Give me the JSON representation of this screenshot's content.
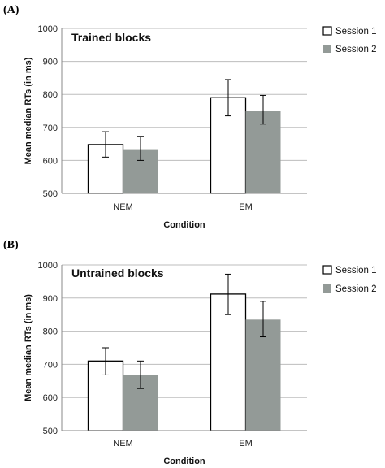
{
  "chart_data": [
    {
      "type": "bar",
      "panel_label": "(A)",
      "title": "Trained blocks",
      "xlabel": "Condition",
      "ylabel": "Mean median RTs (in ms)",
      "ylim": [
        500,
        1000
      ],
      "yticks": [
        500,
        600,
        700,
        800,
        900,
        1000
      ],
      "categories": [
        "NEM",
        "EM"
      ],
      "series": [
        {
          "name": "Session 1",
          "color": "#ffffff",
          "values": [
            648,
            790
          ],
          "error": [
            [
              610,
              687
            ],
            [
              735,
              845
            ]
          ]
        },
        {
          "name": "Session 2",
          "color": "#939a97",
          "values": [
            634,
            750
          ],
          "error": [
            [
              600,
              673
            ],
            [
              710,
              797
            ]
          ]
        }
      ],
      "grid": true,
      "legend_position": "right"
    },
    {
      "type": "bar",
      "panel_label": "(B)",
      "title": "Untrained blocks",
      "xlabel": "Condition",
      "ylabel": "Mean median RTs (in ms)",
      "ylim": [
        500,
        1000
      ],
      "yticks": [
        500,
        600,
        700,
        800,
        900,
        1000
      ],
      "categories": [
        "NEM",
        "EM"
      ],
      "series": [
        {
          "name": "Session 1",
          "color": "#ffffff",
          "values": [
            710,
            912
          ],
          "error": [
            [
              668,
              750
            ],
            [
              850,
              972
            ]
          ]
        },
        {
          "name": "Session 2",
          "color": "#939a97",
          "values": [
            667,
            835
          ],
          "error": [
            [
              627,
              710
            ],
            [
              783,
              890
            ]
          ]
        }
      ],
      "grid": true,
      "legend_position": "right"
    }
  ]
}
